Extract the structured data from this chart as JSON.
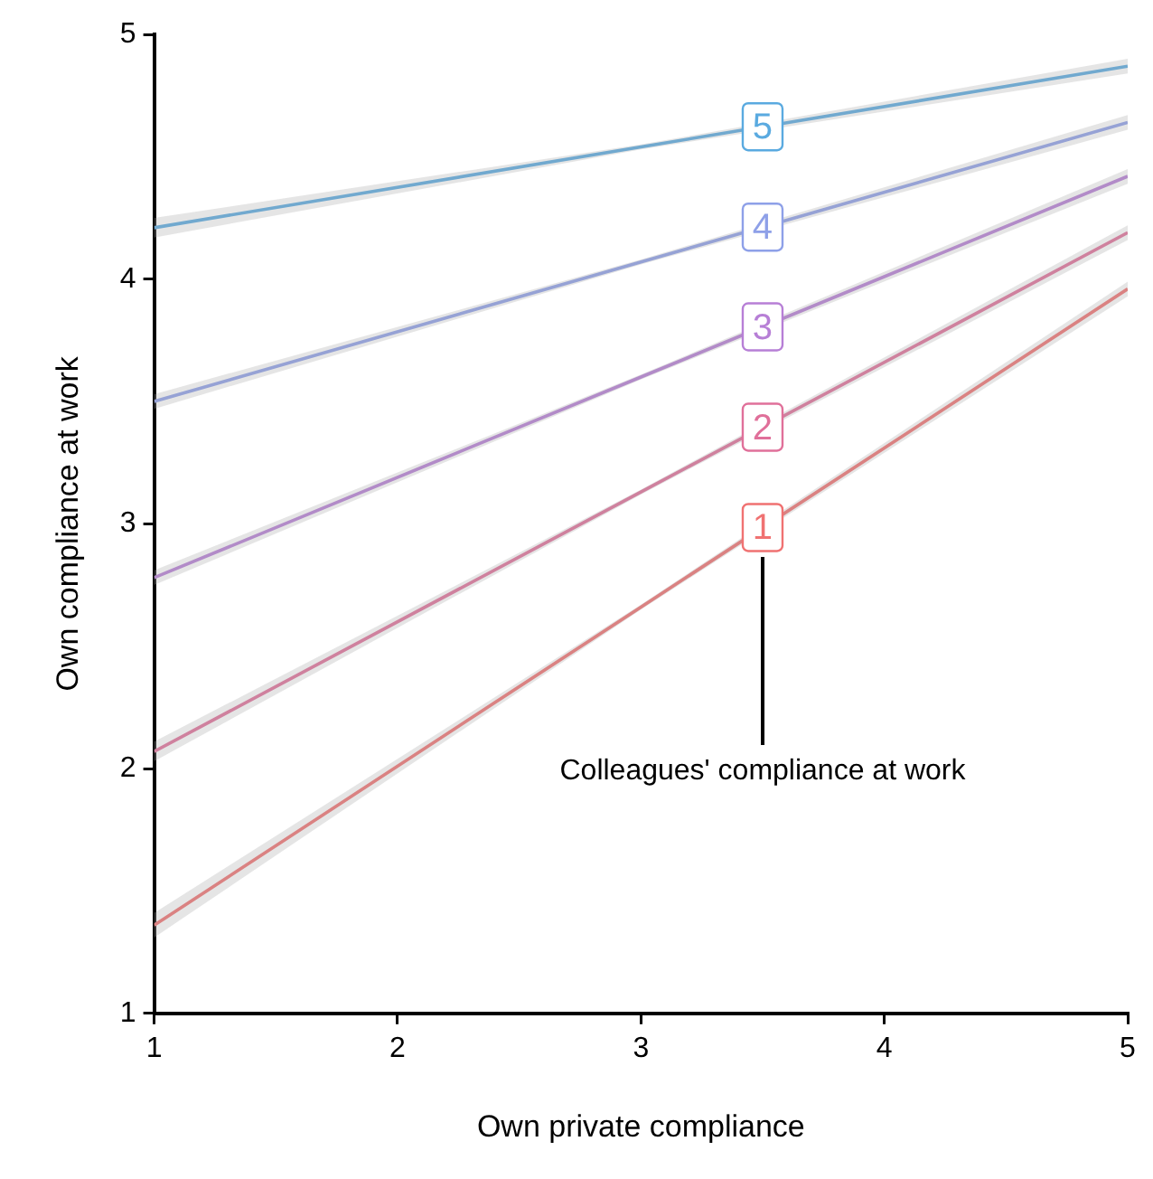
{
  "chart_data": {
    "type": "line",
    "xlabel": "Own private compliance",
    "ylabel": "Own compliance at work",
    "x": [
      1,
      3,
      5
    ],
    "xlim": [
      1,
      5
    ],
    "xticks": [
      1,
      2,
      3,
      4,
      5
    ],
    "ylim": [
      1,
      5
    ],
    "yticks": [
      1,
      2,
      3,
      4,
      5
    ],
    "grid": false,
    "legend": false,
    "marker": "none",
    "line_style": "solid",
    "series": [
      {
        "name": "1",
        "color": "#f07272",
        "values": [
          1.36,
          2.66,
          3.96
        ],
        "lower": [
          1.31,
          2.65,
          3.93
        ],
        "upper": [
          1.41,
          2.67,
          3.99
        ]
      },
      {
        "name": "2",
        "color": "#e0709a",
        "values": [
          2.07,
          3.13,
          4.19
        ],
        "lower": [
          2.03,
          3.12,
          4.16
        ],
        "upper": [
          2.11,
          3.14,
          4.22
        ]
      },
      {
        "name": "3",
        "color": "#b77fd6",
        "values": [
          2.78,
          3.6,
          4.42
        ],
        "lower": [
          2.75,
          3.59,
          4.39
        ],
        "upper": [
          2.81,
          3.61,
          4.45
        ]
      },
      {
        "name": "4",
        "color": "#8ea0e8",
        "values": [
          3.5,
          4.07,
          4.64
        ],
        "lower": [
          3.47,
          4.06,
          4.61
        ],
        "upper": [
          3.53,
          4.08,
          4.67
        ]
      },
      {
        "name": "5",
        "color": "#5aaae0",
        "values": [
          4.21,
          4.54,
          4.87
        ],
        "lower": [
          4.17,
          4.53,
          4.84
        ],
        "upper": [
          4.25,
          4.55,
          4.9
        ]
      }
    ],
    "annotations": [
      "Colleagues' compliance at work"
    ]
  }
}
